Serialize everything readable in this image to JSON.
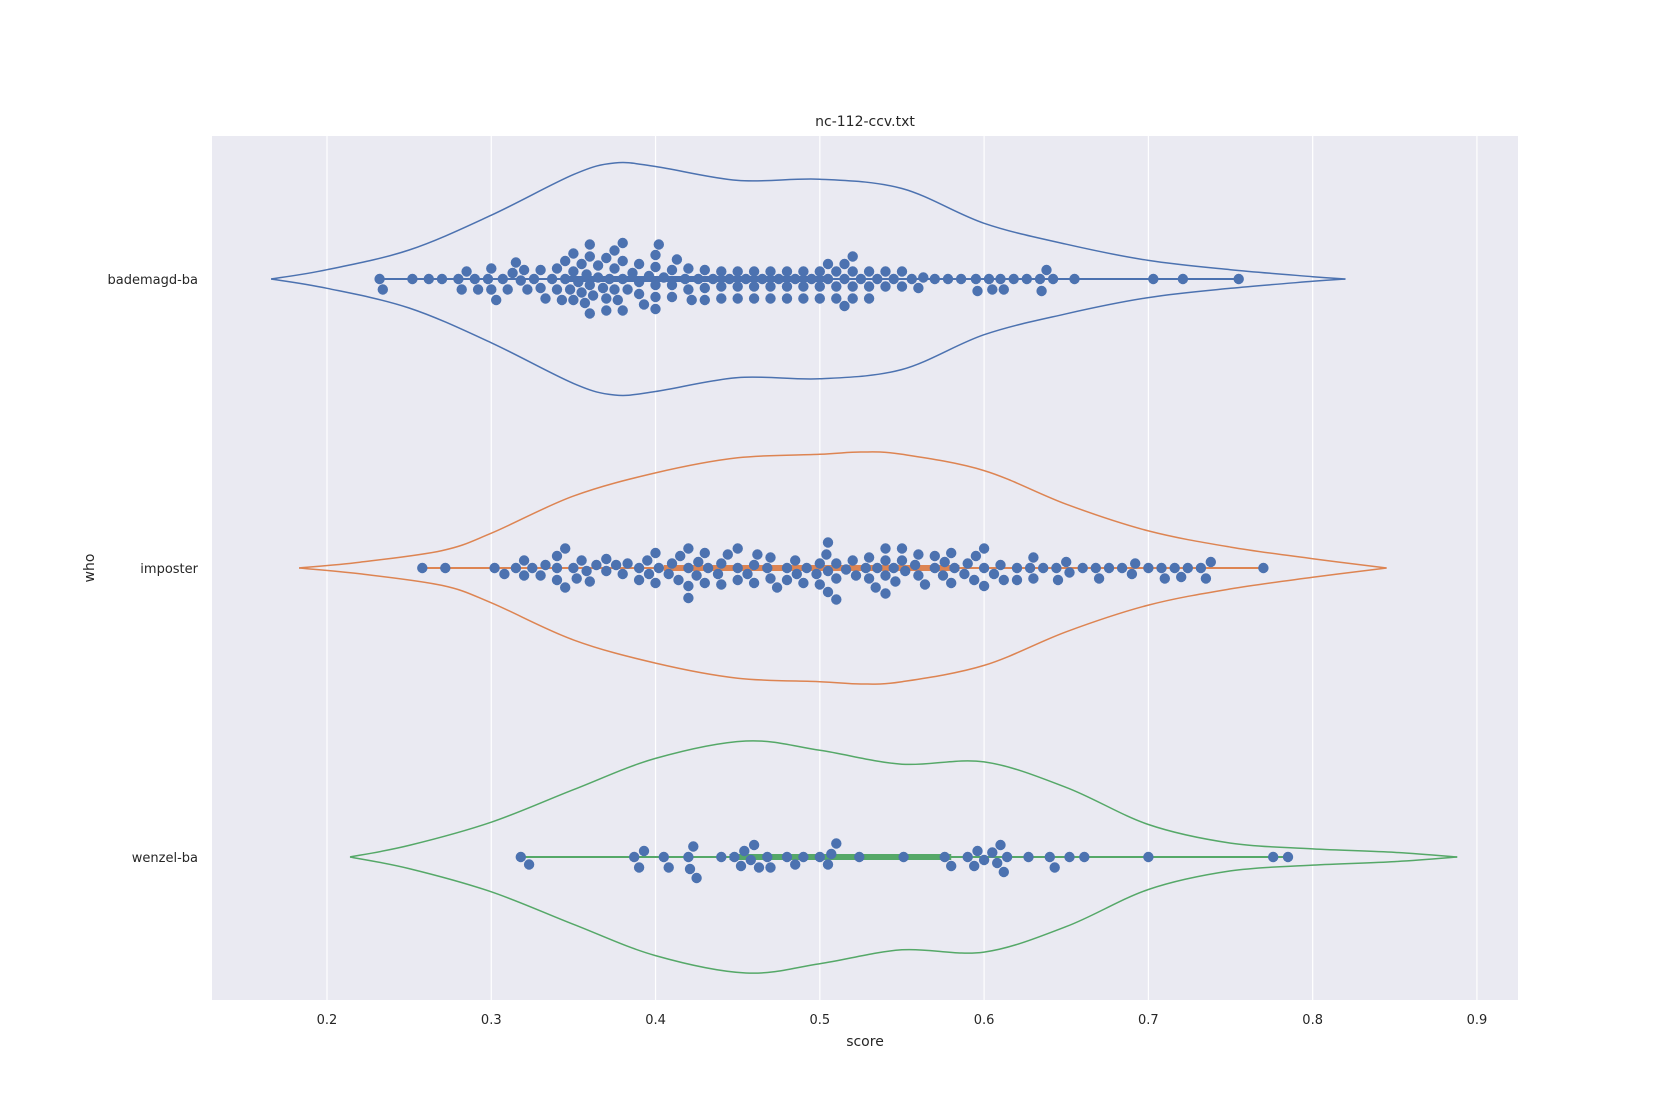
{
  "chart_data": {
    "type": "violin",
    "title": "nc-112-ccv.txt",
    "xlabel": "score",
    "ylabel": "who",
    "xlim": [
      0.13,
      0.925
    ],
    "xticks": [
      0.2,
      0.3,
      0.4,
      0.5,
      0.6,
      0.7,
      0.8,
      0.9
    ],
    "xtick_labels": [
      "0.2",
      "0.3",
      "0.4",
      "0.5",
      "0.6",
      "0.7",
      "0.8",
      "0.9"
    ],
    "grid": true,
    "orientation": "horizontal",
    "point_color": "#4c72b0",
    "categories": [
      "bademagd-ba",
      "imposter",
      "wenzel-ba"
    ],
    "series": [
      {
        "name": "bademagd-ba",
        "color": "#4c72b0",
        "kde_range": [
          0.166,
          0.82
        ],
        "density": [
          [
            0.166,
            0.0
          ],
          [
            0.2,
            0.08
          ],
          [
            0.25,
            0.25
          ],
          [
            0.3,
            0.55
          ],
          [
            0.35,
            0.9
          ],
          [
            0.375,
            1.0
          ],
          [
            0.4,
            0.97
          ],
          [
            0.45,
            0.85
          ],
          [
            0.5,
            0.86
          ],
          [
            0.55,
            0.78
          ],
          [
            0.6,
            0.48
          ],
          [
            0.65,
            0.3
          ],
          [
            0.7,
            0.16
          ],
          [
            0.75,
            0.08
          ],
          [
            0.8,
            0.02
          ],
          [
            0.82,
            0.0
          ]
        ],
        "quartiles": [
          0.345,
          0.42,
          0.505
        ],
        "whisker": [
          0.232,
          0.755
        ],
        "points": [
          0.232,
          0.234,
          0.252,
          0.262,
          0.27,
          0.28,
          0.282,
          0.285,
          0.29,
          0.292,
          0.298,
          0.3,
          0.303,
          0.307,
          0.31,
          0.313,
          0.318,
          0.32,
          0.322,
          0.326,
          0.33,
          0.333,
          0.337,
          0.34,
          0.343,
          0.345,
          0.348,
          0.35,
          0.353,
          0.355,
          0.357,
          0.36,
          0.362,
          0.365,
          0.368,
          0.37,
          0.372,
          0.375,
          0.377,
          0.38,
          0.383,
          0.386,
          0.39,
          0.393,
          0.396,
          0.4,
          0.402,
          0.405,
          0.41,
          0.413,
          0.418,
          0.422,
          0.426,
          0.43,
          0.435,
          0.44,
          0.445,
          0.45,
          0.455,
          0.46,
          0.465,
          0.47,
          0.475,
          0.48,
          0.485,
          0.49,
          0.495,
          0.5,
          0.505,
          0.51,
          0.515,
          0.52,
          0.525,
          0.53,
          0.535,
          0.54,
          0.545,
          0.55,
          0.556,
          0.563,
          0.57,
          0.578,
          0.586,
          0.596,
          0.603,
          0.61,
          0.618,
          0.626,
          0.634,
          0.642,
          0.655,
          0.703,
          0.721,
          0.755,
          0.3,
          0.315,
          0.33,
          0.345,
          0.355,
          0.365,
          0.37,
          0.38,
          0.39,
          0.4,
          0.41,
          0.42,
          0.43,
          0.44,
          0.45,
          0.46,
          0.47,
          0.48,
          0.49,
          0.5,
          0.51,
          0.52,
          0.53,
          0.54,
          0.55,
          0.56,
          0.34,
          0.36,
          0.38,
          0.4,
          0.42,
          0.44,
          0.46,
          0.48,
          0.5,
          0.52,
          0.35,
          0.37,
          0.39,
          0.41,
          0.43,
          0.45,
          0.47,
          0.49,
          0.51,
          0.53,
          0.36,
          0.38,
          0.4,
          0.515,
          0.375,
          0.358,
          0.35,
          0.36,
          0.375,
          0.4,
          0.505,
          0.515,
          0.52,
          0.605,
          0.612,
          0.635,
          0.638,
          0.595
        ]
      },
      {
        "name": "imposter",
        "color": "#dd8452",
        "kde_range": [
          0.183,
          0.845
        ],
        "density": [
          [
            0.183,
            0.0
          ],
          [
            0.22,
            0.05
          ],
          [
            0.27,
            0.15
          ],
          [
            0.3,
            0.3
          ],
          [
            0.35,
            0.62
          ],
          [
            0.4,
            0.82
          ],
          [
            0.45,
            0.95
          ],
          [
            0.5,
            0.98
          ],
          [
            0.525,
            1.0
          ],
          [
            0.55,
            0.98
          ],
          [
            0.6,
            0.84
          ],
          [
            0.65,
            0.55
          ],
          [
            0.7,
            0.32
          ],
          [
            0.75,
            0.18
          ],
          [
            0.8,
            0.08
          ],
          [
            0.845,
            0.0
          ]
        ],
        "quartiles": [
          0.405,
          0.5,
          0.585
        ],
        "whisker": [
          0.258,
          0.77
        ],
        "points": [
          0.258,
          0.272,
          0.302,
          0.308,
          0.315,
          0.32,
          0.325,
          0.333,
          0.34,
          0.345,
          0.352,
          0.358,
          0.364,
          0.37,
          0.376,
          0.383,
          0.39,
          0.396,
          0.402,
          0.408,
          0.414,
          0.42,
          0.426,
          0.432,
          0.438,
          0.444,
          0.45,
          0.456,
          0.462,
          0.468,
          0.474,
          0.48,
          0.486,
          0.492,
          0.498,
          0.504,
          0.51,
          0.516,
          0.522,
          0.528,
          0.534,
          0.54,
          0.546,
          0.552,
          0.558,
          0.564,
          0.57,
          0.576,
          0.582,
          0.588,
          0.594,
          0.6,
          0.606,
          0.612,
          0.62,
          0.628,
          0.636,
          0.644,
          0.652,
          0.66,
          0.668,
          0.676,
          0.684,
          0.692,
          0.7,
          0.708,
          0.716,
          0.724,
          0.732,
          0.738,
          0.77,
          0.32,
          0.34,
          0.36,
          0.38,
          0.4,
          0.42,
          0.44,
          0.46,
          0.48,
          0.5,
          0.52,
          0.54,
          0.56,
          0.58,
          0.6,
          0.33,
          0.35,
          0.37,
          0.39,
          0.41,
          0.43,
          0.45,
          0.47,
          0.49,
          0.51,
          0.53,
          0.55,
          0.57,
          0.59,
          0.61,
          0.63,
          0.345,
          0.395,
          0.425,
          0.505,
          0.54,
          0.595,
          0.42,
          0.46,
          0.5,
          0.535,
          0.575,
          0.63,
          0.65,
          0.69,
          0.72,
          0.735,
          0.43,
          0.505,
          0.54,
          0.6,
          0.34,
          0.355,
          0.415,
          0.44,
          0.47,
          0.53,
          0.56,
          0.62,
          0.645,
          0.67,
          0.71,
          0.4,
          0.485,
          0.51,
          0.55,
          0.58,
          0.42,
          0.45,
          0.505,
          0.545
        ]
      },
      {
        "name": "wenzel-ba",
        "color": "#55a868",
        "kde_range": [
          0.214,
          0.888
        ],
        "density": [
          [
            0.214,
            0.0
          ],
          [
            0.25,
            0.1
          ],
          [
            0.3,
            0.3
          ],
          [
            0.35,
            0.58
          ],
          [
            0.4,
            0.85
          ],
          [
            0.455,
            1.0
          ],
          [
            0.5,
            0.92
          ],
          [
            0.55,
            0.8
          ],
          [
            0.6,
            0.82
          ],
          [
            0.65,
            0.6
          ],
          [
            0.7,
            0.28
          ],
          [
            0.75,
            0.12
          ],
          [
            0.8,
            0.07
          ],
          [
            0.85,
            0.04
          ],
          [
            0.888,
            0.0
          ]
        ],
        "quartiles": [
          0.445,
          0.53,
          0.58
        ],
        "whisker": [
          0.318,
          0.785
        ],
        "points": [
          0.318,
          0.323,
          0.387,
          0.39,
          0.393,
          0.405,
          0.408,
          0.42,
          0.421,
          0.423,
          0.425,
          0.44,
          0.448,
          0.452,
          0.454,
          0.458,
          0.46,
          0.463,
          0.468,
          0.47,
          0.48,
          0.485,
          0.49,
          0.5,
          0.505,
          0.507,
          0.51,
          0.524,
          0.551,
          0.576,
          0.58,
          0.59,
          0.594,
          0.596,
          0.6,
          0.605,
          0.608,
          0.61,
          0.612,
          0.614,
          0.627,
          0.64,
          0.643,
          0.652,
          0.661,
          0.7,
          0.776,
          0.785
        ]
      }
    ]
  }
}
